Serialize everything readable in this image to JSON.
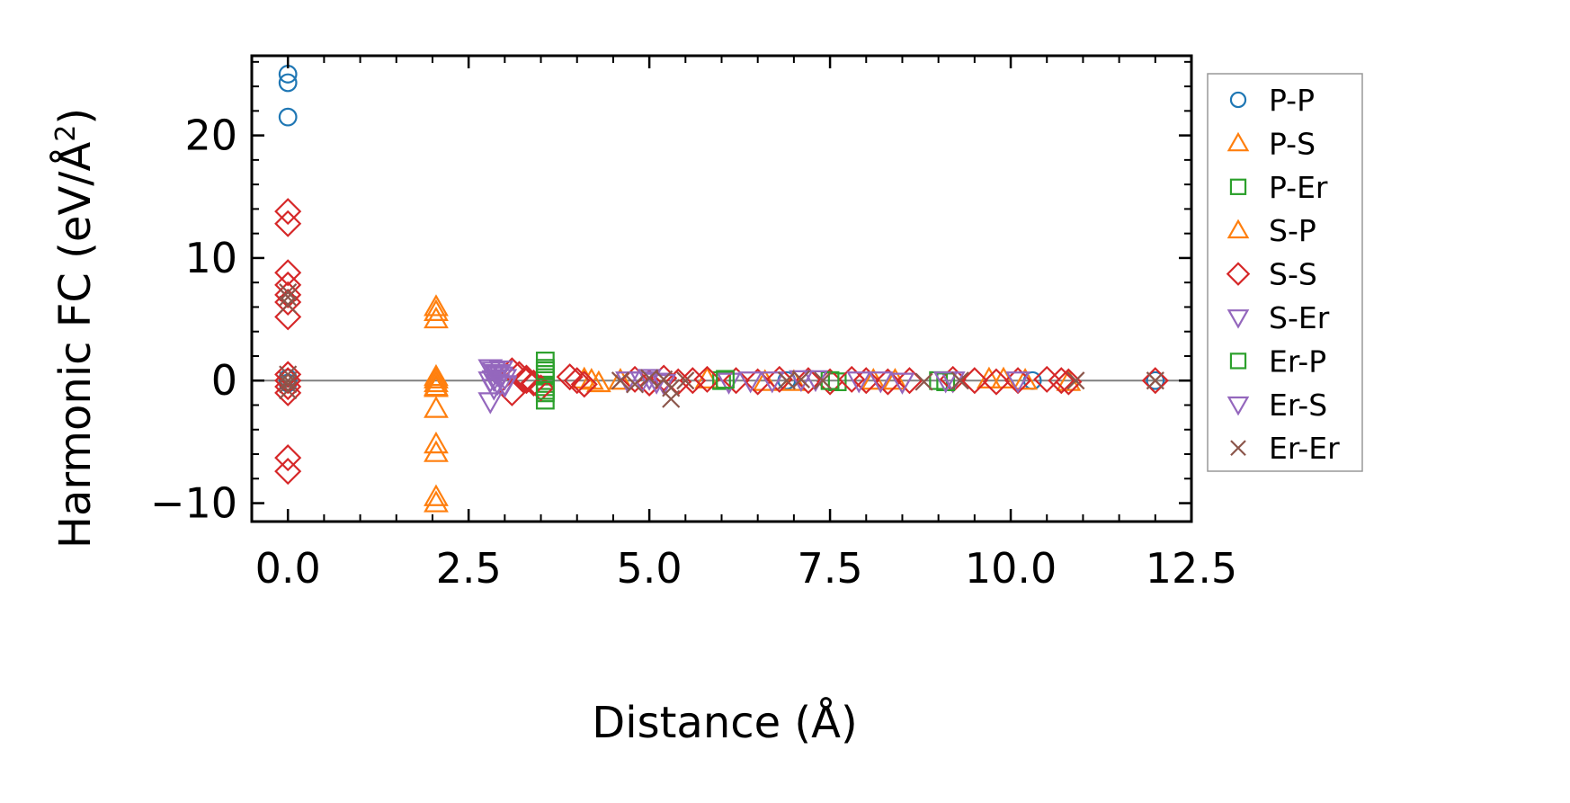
{
  "chart_data": {
    "type": "scatter",
    "title": "",
    "xlabel": "Distance (Å)",
    "ylabel": {
      "main": "Harmonic FC (eV/Å",
      "sup": "2",
      "close": ")"
    },
    "xlim": [
      -0.5,
      12.5
    ],
    "ylim": [
      -11.5,
      26.5
    ],
    "xticks": [
      0.0,
      2.5,
      5.0,
      7.5,
      10.0,
      12.5
    ],
    "xtick_labels": [
      "0.0",
      "2.5",
      "5.0",
      "7.5",
      "10.0",
      "12.5"
    ],
    "xminor_step": 0.5,
    "yticks": [
      -10,
      0,
      10,
      20
    ],
    "ytick_labels": [
      "−10",
      "0",
      "10",
      "20"
    ],
    "yminor_step": 2,
    "hline": 0,
    "legend_position": "outside-right",
    "series": [
      {
        "name": "P-P",
        "marker": "circle",
        "color": "#1f77b4",
        "x": [
          0,
          0,
          0,
          0,
          0,
          6.9,
          10.3,
          12.0
        ],
        "y": [
          25.0,
          24.3,
          21.5,
          0.2,
          -0.2,
          0.0,
          0.0,
          0.0
        ]
      },
      {
        "name": "P-S",
        "marker": "triangle-up",
        "color": "#ff7f0e",
        "x": [
          2.05,
          2.05,
          2.05,
          2.05,
          2.05,
          2.05,
          2.05,
          2.05,
          2.05,
          2.05,
          2.05,
          4.1,
          4.3,
          4.6,
          5.8,
          7.0,
          8.4,
          9.7,
          10.2,
          10.8
        ],
        "y": [
          6.0,
          5.6,
          5.0,
          0.3,
          -0.2,
          -0.6,
          -2.3,
          -5.2,
          -5.9,
          -9.5,
          -10.0,
          0.1,
          -0.2,
          0.0,
          0.1,
          -0.1,
          0.0,
          0.1,
          0.0,
          -0.1
        ]
      },
      {
        "name": "P-Er",
        "marker": "square",
        "color": "#2ca02c",
        "x": [
          3.56,
          3.56,
          3.56,
          3.56,
          3.56,
          3.56,
          3.56,
          6.0,
          7.6,
          9.0
        ],
        "y": [
          1.6,
          1.0,
          0.5,
          0.0,
          -0.5,
          -1.0,
          -1.6,
          0.0,
          -0.1,
          0.0
        ]
      },
      {
        "name": "S-P",
        "marker": "triangle-up",
        "color": "#ff7f0e",
        "x": [
          2.05,
          2.05,
          4.2,
          6.6,
          8.1,
          9.9
        ],
        "y": [
          0.1,
          -0.5,
          0.0,
          -0.1,
          0.0,
          0.1
        ]
      },
      {
        "name": "S-S",
        "marker": "diamond",
        "color": "#d62728",
        "x": [
          0,
          0,
          0,
          0,
          0,
          0,
          0,
          0,
          0,
          0,
          0,
          0,
          0,
          3.1,
          3.2,
          3.3,
          3.4,
          3.5,
          3.1,
          3.3,
          3.9,
          4.0,
          4.1,
          4.8,
          5.0,
          5.2,
          5.4,
          5.6,
          5.8,
          6.2,
          6.5,
          6.8,
          7.2,
          7.5,
          7.8,
          8.0,
          8.3,
          8.6,
          9.2,
          9.5,
          9.8,
          10.1,
          10.5,
          10.7,
          10.8,
          12.0
        ],
        "y": [
          13.8,
          12.8,
          8.8,
          7.8,
          7.0,
          6.4,
          5.2,
          0.5,
          0.0,
          -0.5,
          -1.0,
          -6.3,
          -7.4,
          0.8,
          0.5,
          0.2,
          -0.2,
          -0.6,
          -1.0,
          0.0,
          0.3,
          0.0,
          -0.3,
          0.1,
          -0.2,
          0.2,
          -0.1,
          0.0,
          0.1,
          0.0,
          -0.1,
          0.1,
          0.0,
          -0.1,
          0.1,
          0.0,
          -0.1,
          0.0,
          0.1,
          0.0,
          -0.1,
          0.0,
          0.1,
          0.0,
          -0.1,
          0.0
        ]
      },
      {
        "name": "S-Er",
        "marker": "triangle-down",
        "color": "#9467bd",
        "x": [
          2.8,
          2.85,
          2.9,
          2.95,
          3.0,
          2.8,
          2.9,
          3.0,
          2.85,
          2.95,
          2.8,
          4.7,
          5.0,
          5.2,
          6.1,
          6.4,
          7.1,
          7.9,
          8.5,
          9.2,
          10.1
        ],
        "y": [
          1.0,
          0.8,
          0.6,
          0.4,
          0.2,
          0.0,
          -0.2,
          -0.4,
          -0.6,
          0.9,
          -1.7,
          0.0,
          0.2,
          -0.2,
          -0.1,
          0.0,
          0.1,
          0.0,
          -0.1,
          0.0,
          0.0
        ]
      },
      {
        "name": "Er-P",
        "marker": "square",
        "color": "#2ca02c",
        "x": [
          3.56,
          3.56,
          6.05,
          7.5,
          9.1
        ],
        "y": [
          0.8,
          -0.8,
          0.1,
          0.0,
          -0.1
        ]
      },
      {
        "name": "Er-S",
        "marker": "triangle-down",
        "color": "#9467bd",
        "x": [
          2.9,
          3.0,
          2.85,
          4.9,
          5.1,
          6.7,
          7.3,
          8.2,
          9.1
        ],
        "y": [
          0.5,
          -0.3,
          0.1,
          0.0,
          -0.1,
          0.0,
          0.1,
          0.0,
          0.0
        ]
      },
      {
        "name": "Er-Er",
        "marker": "x",
        "color": "#8c564b",
        "x": [
          0,
          0,
          0,
          0,
          0,
          0,
          0,
          4.6,
          4.8,
          5.0,
          5.2,
          5.3,
          5.3,
          5.5,
          6.9,
          7.1,
          7.4,
          8.8,
          9.3,
          10.9,
          12.0
        ],
        "y": [
          7.2,
          6.8,
          6.2,
          0.5,
          0.0,
          -0.3,
          -0.8,
          0.0,
          -0.3,
          0.2,
          0.1,
          -0.6,
          -1.5,
          0.0,
          0.0,
          0.1,
          0.0,
          -0.1,
          0.0,
          0.0,
          0.0
        ]
      }
    ]
  }
}
